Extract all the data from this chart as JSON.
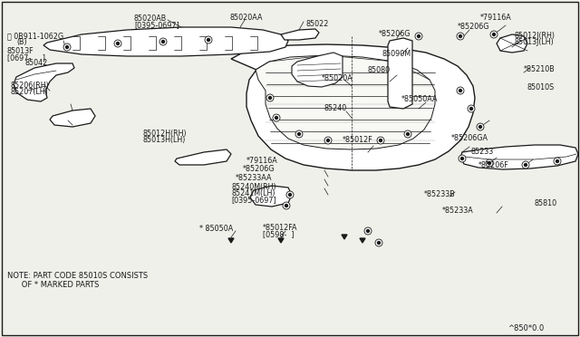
{
  "bg_color": "#f0f0eb",
  "line_color": "#1a1a1a",
  "text_color": "#1a1a1a",
  "note_line1": "NOTE: PART CODE 85010S CONSISTS",
  "note_line2": "      OF * MARKED PARTS",
  "part_code": "^850*0.0"
}
